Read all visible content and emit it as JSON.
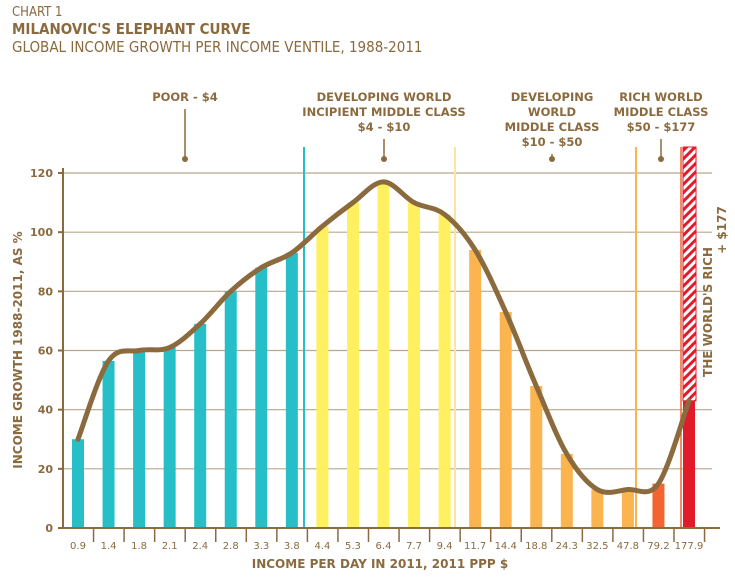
{
  "chart_data": {
    "type": "bar",
    "label": "CHART 1",
    "title": "MILANOVIC'S ELEPHANT CURVE",
    "subtitle": "GLOBAL INCOME GROWTH PER INCOME VENTILE, 1988-2011",
    "xlabel": "INCOME PER DAY IN 2011, 2011 PPP $",
    "ylabel": "INCOME GROWTH 1988-2011, AS %",
    "ylim": [
      0,
      120
    ],
    "yticks": [
      0,
      20,
      40,
      60,
      80,
      100,
      120
    ],
    "grid": true,
    "categories": [
      "0.9",
      "1.4",
      "1.8",
      "2.1",
      "2.4",
      "2.8",
      "3.3",
      "3.8",
      "4.4",
      "5.3",
      "6.4",
      "7.7",
      "9.4",
      "11.7",
      "14.4",
      "18.8",
      "24.3",
      "32.5",
      "47.8",
      "79.2",
      "177.9"
    ],
    "values": [
      30,
      56.5,
      60,
      61,
      69,
      80,
      88,
      93,
      102,
      110,
      117,
      110,
      106,
      94,
      73,
      48,
      25,
      13,
      13,
      15,
      43
    ],
    "bar_groups": [
      "poor",
      "poor",
      "poor",
      "poor",
      "poor",
      "poor",
      "poor",
      "poor",
      "incipient",
      "incipient",
      "incipient",
      "incipient",
      "incipient",
      "developing",
      "developing",
      "developing",
      "developing",
      "developing",
      "developing",
      "richmid",
      "rich"
    ],
    "colors": {
      "poor": "#27bfc7",
      "incipient": "#fff060",
      "developing": "#fbb44e",
      "richmid": "#f26530",
      "rich": "#e21b2b",
      "curve": "#8b6a3e",
      "grid": "#b8a88c"
    },
    "annotations": [
      {
        "lines": [
          "POOR - $4"
        ]
      },
      {
        "lines": [
          "DEVELOPING WORLD",
          "INCIPIENT MIDDLE CLASS",
          "$4 - $10"
        ]
      },
      {
        "lines": [
          "DEVELOPING",
          "WORLD",
          "MIDDLE CLASS",
          "$10 - $50"
        ]
      },
      {
        "lines": [
          "RICH WORLD",
          "MIDDLE CLASS",
          "$50 - $177"
        ]
      },
      {
        "lines": [
          "THE WORLD'S RICH",
          "+ $177"
        ]
      }
    ]
  }
}
